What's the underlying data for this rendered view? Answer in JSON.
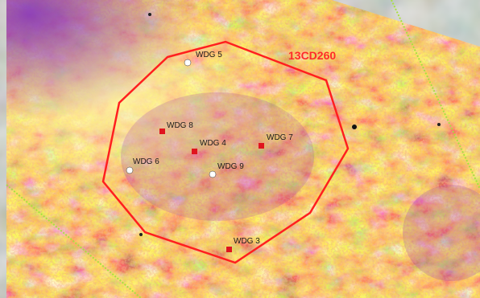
{
  "map": {
    "boundary": {
      "label": "13CD260",
      "color": "#ff1f1f"
    },
    "wells": [
      {
        "id": "w5",
        "label": "WDG 5",
        "status": "white"
      },
      {
        "id": "w8",
        "label": "WDG 8",
        "status": "red"
      },
      {
        "id": "w4",
        "label": "WDG 4",
        "status": "red"
      },
      {
        "id": "w7",
        "label": "WDG 7",
        "status": "red"
      },
      {
        "id": "w6",
        "label": "WDG 6",
        "status": "white"
      },
      {
        "id": "w9",
        "label": "WDG 9",
        "status": "white"
      },
      {
        "id": "w3",
        "label": "WDG 3",
        "status": "red"
      }
    ],
    "colors": {
      "heat_low": "#8a2ea8",
      "heat_mid": "#e8a820",
      "heat_high": "#fff2a0",
      "well_red": "#e0141e",
      "well_white": "#ffffff",
      "guide_line": "#a8e040",
      "background_terrain": "#6a7463"
    }
  }
}
